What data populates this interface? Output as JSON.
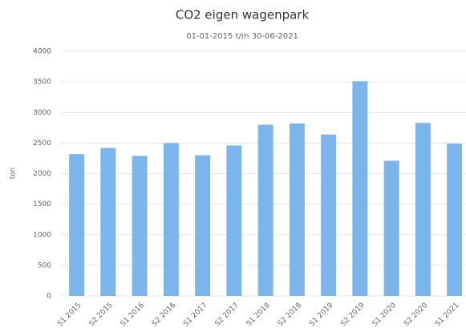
{
  "chart_data": {
    "type": "bar",
    "title": "CO2 eigen wagenpark",
    "subtitle": "01-01-2015 t/m 30-06-2021",
    "y_label": "ton",
    "categories": [
      "S1 2015",
      "S2 2015",
      "S1 2016",
      "S2 2016",
      "S1 2017",
      "S2 2017",
      "S1 2018",
      "S2 2018",
      "S1 2019",
      "S2 2019",
      "S1 2020",
      "S2 2020",
      "S1 2021"
    ],
    "values": [
      2320,
      2420,
      2290,
      2500,
      2300,
      2460,
      2800,
      2820,
      2640,
      3510,
      2210,
      2830,
      2490
    ],
    "color": "#7cb5ec",
    "ylim": [
      0,
      4000
    ],
    "yticks": [
      0,
      500,
      1000,
      1500,
      2000,
      2500,
      3000,
      3500,
      4000
    ],
    "grid": true
  }
}
